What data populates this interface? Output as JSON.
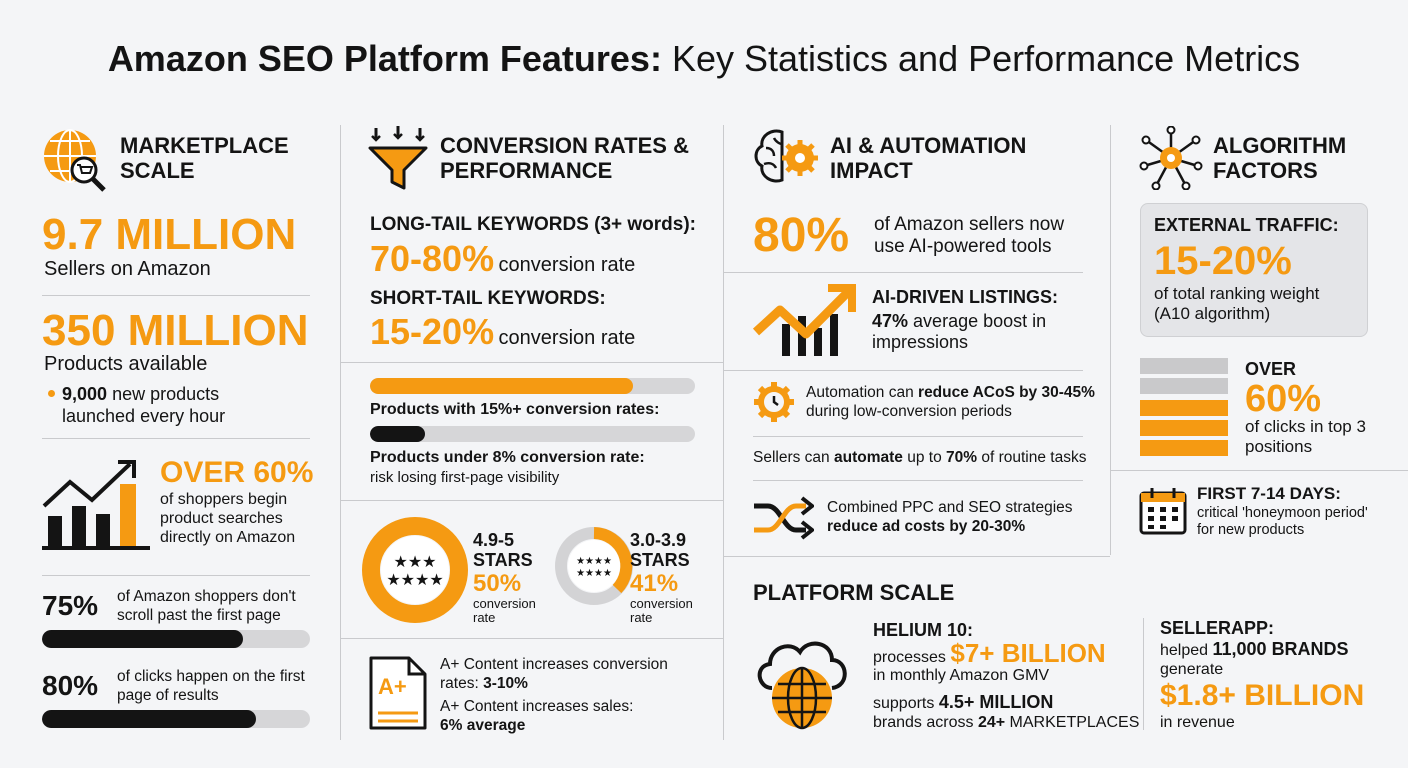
{
  "header": {
    "title_bold": "Amazon SEO Platform Features:",
    "title_rest": "Key Statistics and Performance Metrics"
  },
  "marketplace": {
    "heading": "MARKETPLACE SCALE",
    "sellers": {
      "value": "9.7 MILLION",
      "label": "Sellers on Amazon"
    },
    "products": {
      "value": "350 MILLION",
      "label": "Products available"
    },
    "launch": {
      "bold": "9,000",
      "rest": "new products launched every hour"
    },
    "search": {
      "value": "OVER 60%",
      "label": "of shoppers begin product searches directly on Amazon"
    },
    "page_stats": [
      {
        "label": "75%",
        "percent": 75,
        "text": "of Amazon shoppers don't scroll past the first page"
      },
      {
        "label": "80%",
        "percent": 80,
        "text": "of clicks happen on the first page of results"
      }
    ]
  },
  "conversion": {
    "heading": "CONVERSION RATES & PERFORMANCE",
    "long_tail": {
      "label": "LONG-TAIL KEYWORDS (3+ words):",
      "value": "70-80%",
      "unit": "conversion rate"
    },
    "short_tail": {
      "label": "SHORT-TAIL KEYWORDS:",
      "value": "15-20%",
      "unit": "conversion rate"
    },
    "bars": [
      {
        "label": "Products with 15%+ conversion rates:"
      },
      {
        "label": "Products under 8% conversion rate:",
        "note": "risk losing first-page visibility"
      }
    ],
    "ratings": [
      {
        "stars": "4.9-5 STARS",
        "value": "50%",
        "label": "conversion rate"
      },
      {
        "stars": "3.0-3.9 STARS",
        "value": "41%",
        "label": "conversion rate"
      }
    ],
    "aplus": {
      "icon": "A+",
      "conversion": "A+ Content increases conversion rates:",
      "conversion_value": "3-10%",
      "sales": "A+ Content increases sales:",
      "sales_value": "6% average"
    }
  },
  "ai": {
    "heading": "AI & AUTOMATION IMPACT",
    "adoption": {
      "value": "80%",
      "label": "of Amazon sellers now use AI-powered tools"
    },
    "listings": {
      "label": "AI-DRIVEN LISTINGS:",
      "bold": "47%",
      "rest": "average boost in impressions"
    },
    "acos": {
      "pre": "Automation can",
      "bold": "reduce ACoS by 30-45%",
      "rest": "during low-conversion periods"
    },
    "tasks": {
      "pre": "Sellers can",
      "bold1": "automate",
      "mid": "up to",
      "bold2": "70%",
      "rest": "of routine tasks"
    },
    "ppc": {
      "pre": "Combined PPC and SEO strategies",
      "bold": "reduce ad costs by 20-30%"
    }
  },
  "platform": {
    "heading": "PLATFORM SCALE",
    "helium": {
      "name": "HELIUM 10:",
      "pre": "processes",
      "value": "$7+ BILLION",
      "gmv": "in monthly Amazon GMV",
      "supports": "supports",
      "brands": "4.5+ MILLION",
      "across": "brands across",
      "markets": "24+",
      "markets_rest": "MARKETPLACES"
    },
    "sellerapp": {
      "name": "SELLERAPP:",
      "pre": "helped",
      "brands": "11,000 BRANDS",
      "generate": "generate",
      "value": "$1.8+ BILLION",
      "rest": "in revenue"
    }
  },
  "algorithm": {
    "heading": "ALGORITHM FACTORS",
    "traffic": {
      "label": "EXTERNAL TRAFFIC:",
      "value": "15-20%",
      "text": "of total ranking weight (A10 algorithm)"
    },
    "clicks": {
      "pre": "OVER",
      "value": "60%",
      "text": "of clicks in top 3 positions"
    },
    "days": {
      "label": "FIRST 7-14 DAYS:",
      "text": "critical 'honeymoon period' for new products"
    }
  }
}
